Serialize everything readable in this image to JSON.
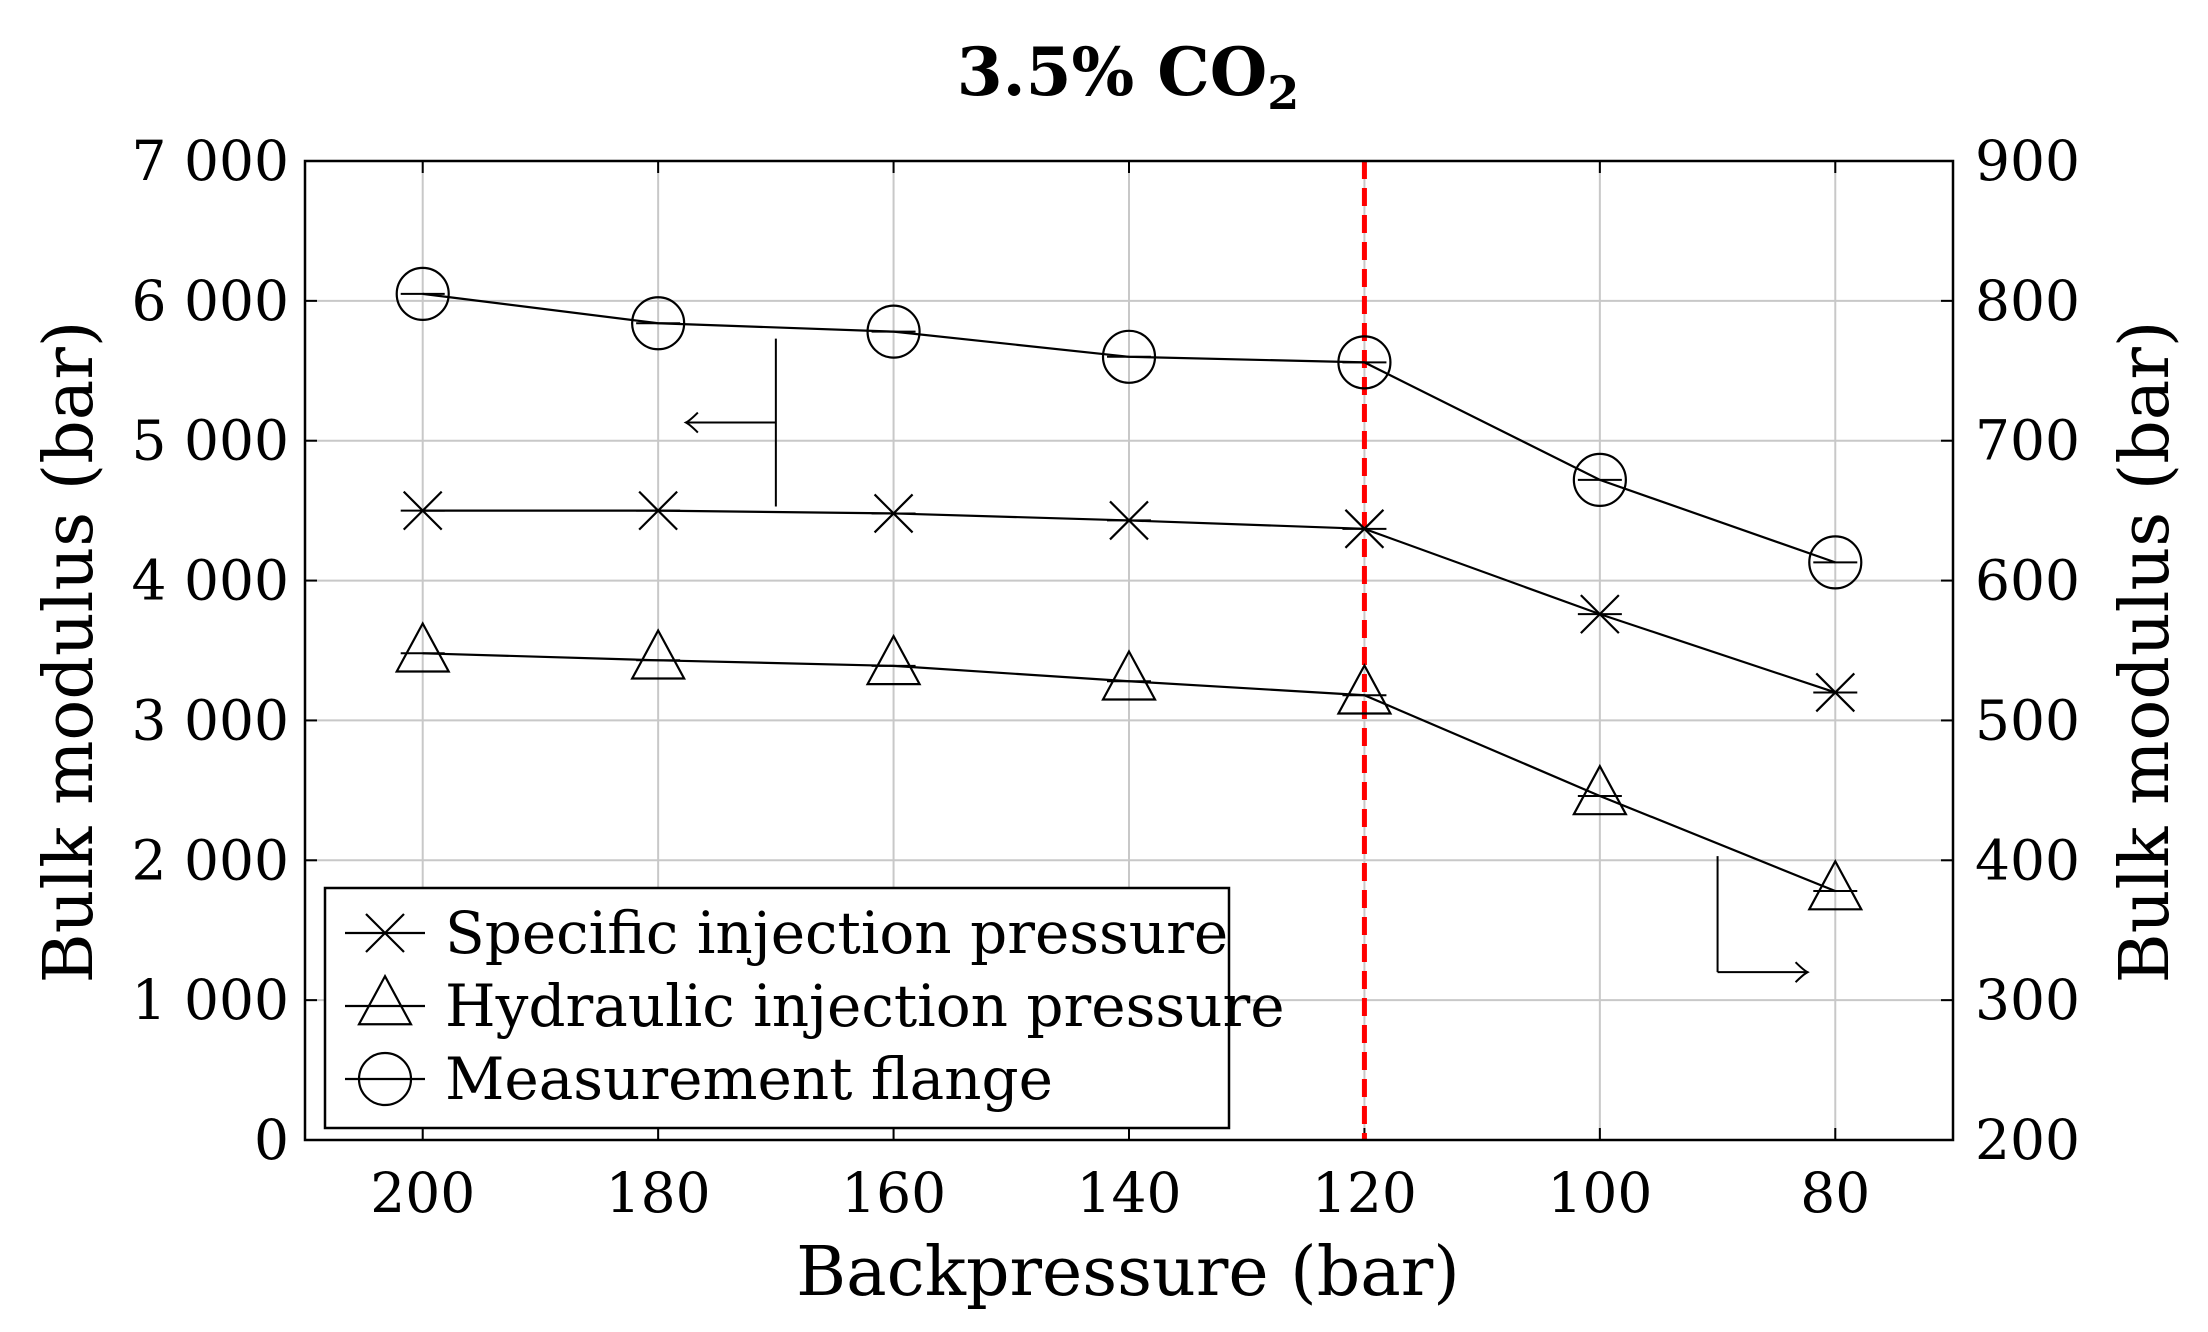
{
  "chart_data": {
    "type": "line",
    "title": "3.5% CO",
    "title_subscript": "2",
    "xlabel": "Backpressure (bar)",
    "ylabel": "Bulk modulus (bar)",
    "y2label": "Bulk modulus (bar)",
    "xlim": [
      210,
      70
    ],
    "ylim": [
      0,
      7000
    ],
    "y2lim": [
      200,
      900
    ],
    "x_ticks": [
      200,
      180,
      160,
      140,
      120,
      100,
      80
    ],
    "y_ticks": [
      0,
      1000,
      2000,
      3000,
      4000,
      5000,
      6000,
      7000
    ],
    "y_tick_labels": [
      "0",
      "1 000",
      "2 000",
      "3 000",
      "4 000",
      "5 000",
      "6 000",
      "7 000"
    ],
    "y2_ticks": [
      200,
      300,
      400,
      500,
      600,
      700,
      800,
      900
    ],
    "y2_tick_labels": [
      "200",
      "300",
      "400",
      "500",
      "600",
      "700",
      "800",
      "900"
    ],
    "grid": true,
    "legend_position": "bottom-left",
    "vertical_line": {
      "x": 120,
      "color": "#ff0000",
      "style": "dashed"
    },
    "series": [
      {
        "name": "Specific injection pressure",
        "marker": "x",
        "axis": "left",
        "x": [
          200,
          180,
          160,
          140,
          120,
          100,
          80
        ],
        "values": [
          4500,
          4500,
          4480,
          4430,
          4370,
          3760,
          3200
        ]
      },
      {
        "name": "Hydraulic injection pressure",
        "marker": "triangle",
        "axis": "left",
        "x": [
          200,
          180,
          160,
          140,
          120,
          100,
          80
        ],
        "values": [
          3480,
          3430,
          3390,
          3280,
          3180,
          2460,
          1780
        ]
      },
      {
        "name": "Measurement flange",
        "marker": "circle",
        "axis": "right",
        "x": [
          200,
          180,
          160,
          140,
          120,
          100,
          80
        ],
        "values": [
          805,
          784,
          778,
          760,
          756,
          672,
          613
        ]
      }
    ],
    "annotations": [
      {
        "type": "arrow",
        "direction": "left",
        "points_to_axis": "left",
        "anchor_x": 170,
        "anchor_y_range": [
          4530,
          5730
        ]
      },
      {
        "type": "arrow",
        "direction": "right",
        "points_to_axis": "right",
        "anchor_x": 90,
        "anchor_y_range": [
          320,
          403
        ]
      }
    ]
  }
}
